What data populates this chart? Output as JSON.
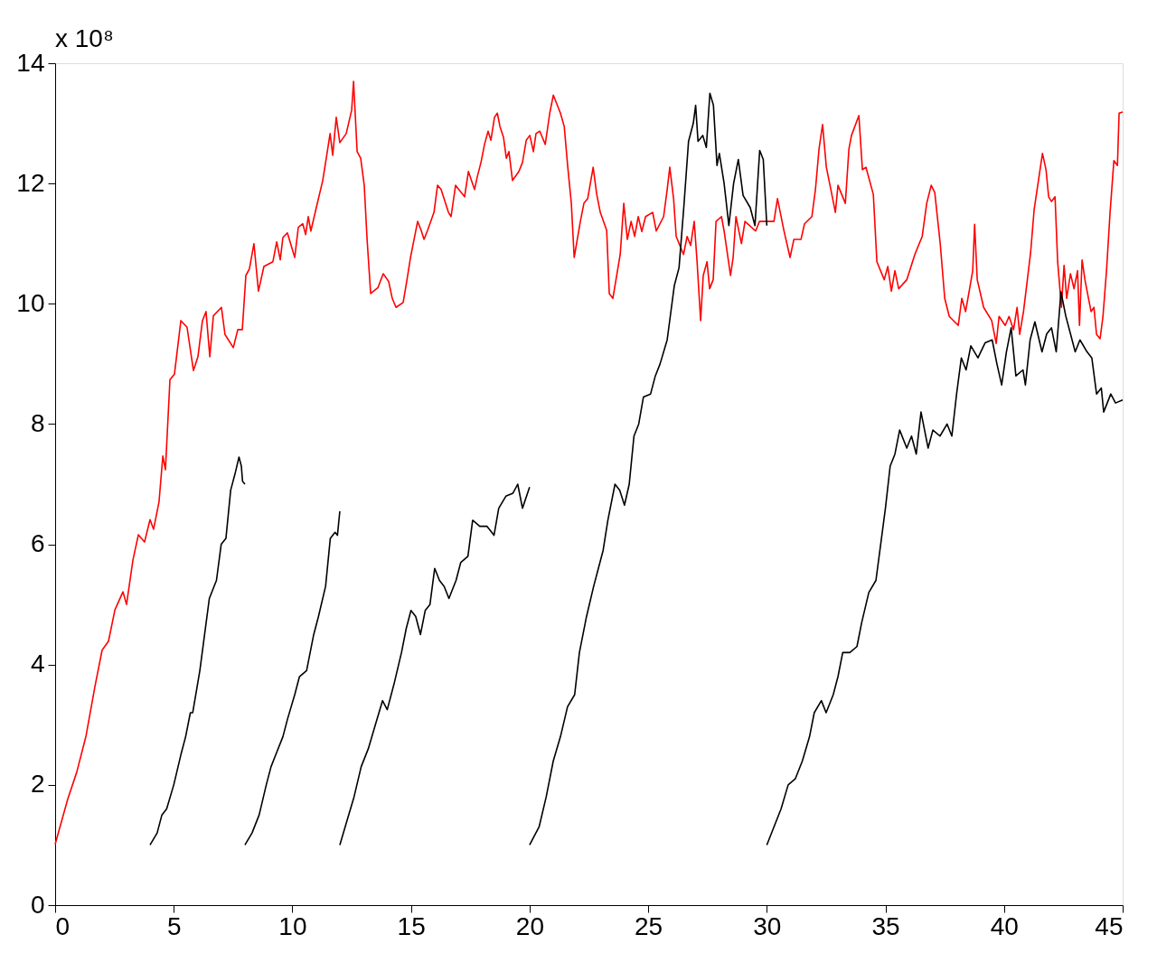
{
  "chart_data": {
    "type": "line",
    "xlim": [
      0,
      45
    ],
    "xticks": [
      0,
      5,
      10,
      15,
      20,
      25,
      30,
      35,
      40,
      45
    ],
    "ylim": [
      0,
      14
    ],
    "yticks": [
      0,
      2,
      4,
      6,
      8,
      10,
      12,
      14
    ],
    "grid": false,
    "legend": false,
    "marker": "none",
    "line_style": "solid",
    "annotations": [
      "x 10⁸"
    ],
    "series": [
      {
        "color": "#ff0000",
        "x": [
          0,
          0.53,
          0.91,
          1.3,
          1.68,
          1.98,
          2.25,
          2.52,
          2.86,
          3.01,
          3.28,
          3.51,
          3.77,
          4.0,
          4.15,
          4.38,
          4.54,
          4.65,
          4.84,
          5.03,
          5.3,
          5.56,
          5.83,
          6.02,
          6.21,
          6.36,
          6.52,
          6.67,
          7.01,
          7.16,
          7.51,
          7.7,
          7.89,
          8.04,
          8.19,
          8.38,
          8.57,
          8.8,
          9.18,
          9.34,
          9.49,
          9.6,
          9.79,
          10.1,
          10.25,
          10.44,
          10.56,
          10.67,
          10.78,
          11.01,
          11.28,
          11.43,
          11.59,
          11.7,
          11.85,
          12.0,
          12.27,
          12.5,
          12.58,
          12.73,
          12.88,
          13.03,
          13.15,
          13.3,
          13.61,
          13.83,
          14.06,
          14.21,
          14.37,
          14.67,
          14.82,
          14.98,
          15.13,
          15.28,
          15.43,
          15.55,
          15.7,
          15.97,
          16.12,
          16.27,
          16.58,
          16.69,
          16.88,
          17.26,
          17.42,
          17.68,
          17.8,
          17.95,
          18.1,
          18.25,
          18.37,
          18.52,
          18.64,
          18.75,
          18.9,
          19.02,
          19.13,
          19.28,
          19.55,
          19.7,
          19.86,
          20.01,
          20.16,
          20.27,
          20.43,
          20.66,
          20.85,
          21.0,
          21.3,
          21.46,
          21.61,
          21.76,
          21.88,
          22.14,
          22.29,
          22.45,
          22.68,
          22.83,
          22.98,
          23.25,
          23.36,
          23.51,
          23.82,
          23.97,
          24.12,
          24.28,
          24.43,
          24.58,
          24.73,
          24.89,
          25.19,
          25.34,
          25.65,
          25.8,
          25.91,
          26.07,
          26.18,
          26.49,
          26.64,
          26.79,
          26.94,
          27.06,
          27.21,
          27.32,
          27.48,
          27.59,
          27.74,
          27.86,
          28.09,
          28.2,
          28.47,
          28.58,
          28.7,
          28.93,
          29.08,
          29.53,
          29.69,
          30.3,
          30.45,
          30.72,
          30.98,
          31.14,
          31.44,
          31.59,
          31.9,
          32.05,
          32.2,
          32.35,
          32.51,
          32.74,
          32.89,
          33.0,
          33.31,
          33.46,
          33.57,
          33.88,
          34.03,
          34.18,
          34.49,
          34.64,
          34.95,
          35.1,
          35.25,
          35.4,
          35.56,
          35.9,
          36.24,
          36.55,
          36.74,
          36.93,
          37.08,
          37.31,
          37.5,
          37.69,
          38.07,
          38.22,
          38.38,
          38.53,
          38.68,
          38.76,
          38.87,
          39.14,
          39.48,
          39.67,
          39.79,
          40.05,
          40.21,
          40.4,
          40.55,
          40.66,
          40.82,
          40.97,
          41.12,
          41.27,
          41.5,
          41.62,
          41.77,
          41.88,
          42.0,
          42.15,
          42.26,
          42.42,
          42.53,
          42.64,
          42.8,
          42.95,
          43.1,
          43.18,
          43.29,
          43.41,
          43.56,
          43.67,
          43.79,
          43.9,
          44.05,
          44.17,
          44.32,
          44.47,
          44.63,
          44.78,
          44.85,
          45
        ],
        "values": [
          1.01,
          1.76,
          2.21,
          2.81,
          3.64,
          4.24,
          4.39,
          4.91,
          5.21,
          5.0,
          5.74,
          6.16,
          6.04,
          6.41,
          6.25,
          6.71,
          7.47,
          7.24,
          8.74,
          8.83,
          9.72,
          9.61,
          8.89,
          9.12,
          9.72,
          9.87,
          9.12,
          9.8,
          9.94,
          9.49,
          9.27,
          9.57,
          9.57,
          10.47,
          10.58,
          11.0,
          10.21,
          10.62,
          10.7,
          11.03,
          10.73,
          11.1,
          11.18,
          10.77,
          11.27,
          11.33,
          11.15,
          11.45,
          11.21,
          11.6,
          12.05,
          12.42,
          12.83,
          12.47,
          13.1,
          12.68,
          12.83,
          13.22,
          13.7,
          12.53,
          12.42,
          11.97,
          11.07,
          10.17,
          10.27,
          10.5,
          10.37,
          10.09,
          9.94,
          10.02,
          10.37,
          10.77,
          11.07,
          11.37,
          11.22,
          11.07,
          11.22,
          11.52,
          11.97,
          11.9,
          11.52,
          11.45,
          11.97,
          11.78,
          12.2,
          11.9,
          12.12,
          12.35,
          12.65,
          12.87,
          12.72,
          13.1,
          13.17,
          12.95,
          12.77,
          12.42,
          12.53,
          12.05,
          12.2,
          12.35,
          12.72,
          12.8,
          12.53,
          12.83,
          12.87,
          12.65,
          13.17,
          13.47,
          13.17,
          12.95,
          12.27,
          11.67,
          10.77,
          11.37,
          11.67,
          11.75,
          12.27,
          11.82,
          11.52,
          11.22,
          10.17,
          10.09,
          10.82,
          11.67,
          11.07,
          11.37,
          11.12,
          11.45,
          11.2,
          11.45,
          11.52,
          11.21,
          11.45,
          11.9,
          12.27,
          11.75,
          11.12,
          10.82,
          11.12,
          10.97,
          11.37,
          10.7,
          9.72,
          10.47,
          10.7,
          10.25,
          10.4,
          11.37,
          11.45,
          11.21,
          10.47,
          10.77,
          11.45,
          11.0,
          11.37,
          11.21,
          11.37,
          11.37,
          11.75,
          11.22,
          10.77,
          11.07,
          11.07,
          11.33,
          11.45,
          11.9,
          12.57,
          12.98,
          12.27,
          11.82,
          11.52,
          11.97,
          11.67,
          12.57,
          12.8,
          13.13,
          12.23,
          12.27,
          11.82,
          10.7,
          10.4,
          10.62,
          10.21,
          10.55,
          10.25,
          10.4,
          10.82,
          11.12,
          11.67,
          11.97,
          11.85,
          11.0,
          10.09,
          9.79,
          9.64,
          10.09,
          9.87,
          10.21,
          10.55,
          11.32,
          10.4,
          9.94,
          9.72,
          9.34,
          9.79,
          9.64,
          9.79,
          9.57,
          9.94,
          9.49,
          9.87,
          10.36,
          10.85,
          11.57,
          12.18,
          12.5,
          12.23,
          11.78,
          11.7,
          11.78,
          10.7,
          9.94,
          10.64,
          10.09,
          10.5,
          10.25,
          10.55,
          9.64,
          10.73,
          10.4,
          10.09,
          9.87,
          9.94,
          9.49,
          9.42,
          9.79,
          10.55,
          11.52,
          12.38,
          12.3,
          13.17,
          13.19
        ]
      },
      {
        "color": "#000000",
        "x": [
          4.0,
          4.3,
          4.5,
          4.7,
          5.0,
          5.3,
          5.5,
          5.7,
          5.8,
          6.1,
          6.3,
          6.5,
          6.8,
          7.0,
          7.2,
          7.4,
          7.6,
          7.75,
          7.85,
          7.9,
          8.0
        ],
        "values": [
          1.0,
          1.2,
          1.5,
          1.6,
          2.0,
          2.5,
          2.8,
          3.2,
          3.2,
          3.9,
          4.5,
          5.1,
          5.4,
          6.0,
          6.1,
          6.9,
          7.2,
          7.45,
          7.3,
          7.05,
          7.0
        ]
      },
      {
        "color": "#000000",
        "x": [
          8,
          8.3,
          8.6,
          8.9,
          9.1,
          9.3,
          9.6,
          9.8,
          10.1,
          10.3,
          10.6,
          10.9,
          11.1,
          11.4,
          11.6,
          11.8,
          11.9,
          12.0
        ],
        "values": [
          1.0,
          1.2,
          1.5,
          2.0,
          2.3,
          2.5,
          2.8,
          3.1,
          3.5,
          3.8,
          3.9,
          4.5,
          4.8,
          5.3,
          6.1,
          6.2,
          6.15,
          6.55
        ]
      },
      {
        "color": "#000000",
        "x": [
          12,
          12.3,
          12.6,
          12.9,
          13.2,
          13.5,
          13.8,
          14.0,
          14.3,
          14.6,
          14.8,
          15.0,
          15.2,
          15.4,
          15.6,
          15.8,
          16.0,
          16.2,
          16.4,
          16.6,
          16.9,
          17.1,
          17.4,
          17.6,
          17.9,
          18.2,
          18.5,
          18.7,
          19.0,
          19.3,
          19.5,
          19.7,
          20.0
        ],
        "values": [
          1.0,
          1.4,
          1.8,
          2.3,
          2.6,
          3.0,
          3.4,
          3.25,
          3.7,
          4.2,
          4.6,
          4.9,
          4.8,
          4.5,
          4.9,
          5.0,
          5.6,
          5.4,
          5.3,
          5.1,
          5.4,
          5.7,
          5.8,
          6.4,
          6.3,
          6.3,
          6.15,
          6.6,
          6.8,
          6.85,
          7.0,
          6.6,
          6.95
        ]
      },
      {
        "color": "#000000",
        "x": [
          20,
          20.4,
          20.7,
          21.0,
          21.3,
          21.6,
          21.9,
          22.1,
          22.4,
          22.7,
          22.9,
          23.1,
          23.3,
          23.6,
          23.8,
          24.0,
          24.2,
          24.4,
          24.6,
          24.8,
          25.1,
          25.3,
          25.5,
          25.8,
          25.9,
          26.1,
          26.3,
          26.5,
          26.7,
          26.9,
          27.0,
          27.1,
          27.3,
          27.45,
          27.6,
          27.75,
          27.9,
          28.0,
          28.2,
          28.4,
          28.6,
          28.8,
          29.0,
          29.3,
          29.5,
          29.7,
          29.85,
          30.0
        ],
        "values": [
          1.0,
          1.3,
          1.8,
          2.4,
          2.8,
          3.3,
          3.5,
          4.2,
          4.8,
          5.3,
          5.6,
          5.9,
          6.4,
          7.0,
          6.9,
          6.65,
          7.0,
          7.8,
          8.0,
          8.45,
          8.5,
          8.8,
          9.0,
          9.4,
          9.7,
          10.3,
          10.6,
          11.6,
          12.7,
          13.0,
          13.3,
          12.7,
          12.8,
          12.6,
          13.5,
          13.3,
          12.3,
          12.5,
          12.0,
          11.3,
          12.0,
          12.4,
          11.8,
          11.6,
          11.3,
          12.55,
          12.4,
          11.3
        ]
      },
      {
        "color": "#000000",
        "x": [
          30,
          30.3,
          30.6,
          30.9,
          31.2,
          31.5,
          31.8,
          32.0,
          32.3,
          32.5,
          32.8,
          33.0,
          33.2,
          33.5,
          33.8,
          34.0,
          34.3,
          34.6,
          34.8,
          35.0,
          35.2,
          35.4,
          35.6,
          35.9,
          36.1,
          36.3,
          36.5,
          36.8,
          37.0,
          37.3,
          37.6,
          37.8,
          38.0,
          38.2,
          38.4,
          38.6,
          38.9,
          39.2,
          39.5,
          39.7,
          39.9,
          40.1,
          40.3,
          40.5,
          40.8,
          40.9,
          41.1,
          41.3,
          41.6,
          41.8,
          42.0,
          42.2,
          42.4,
          42.6,
          42.8,
          43.0,
          43.2,
          43.5,
          43.7,
          43.9,
          44.1,
          44.2,
          44.5,
          44.7,
          45.0
        ],
        "values": [
          1.0,
          1.3,
          1.6,
          2.0,
          2.1,
          2.4,
          2.8,
          3.2,
          3.4,
          3.2,
          3.5,
          3.8,
          4.2,
          4.2,
          4.3,
          4.7,
          5.2,
          5.4,
          6.0,
          6.6,
          7.3,
          7.5,
          7.9,
          7.6,
          7.8,
          7.5,
          8.2,
          7.6,
          7.9,
          7.8,
          8.0,
          7.8,
          8.5,
          9.1,
          8.9,
          9.3,
          9.1,
          9.35,
          9.4,
          9.0,
          8.65,
          9.2,
          9.6,
          8.8,
          8.9,
          8.65,
          9.4,
          9.7,
          9.2,
          9.5,
          9.6,
          9.2,
          10.2,
          9.8,
          9.5,
          9.2,
          9.4,
          9.2,
          9.1,
          8.5,
          8.6,
          8.2,
          8.5,
          8.35,
          8.4
        ]
      }
    ]
  }
}
